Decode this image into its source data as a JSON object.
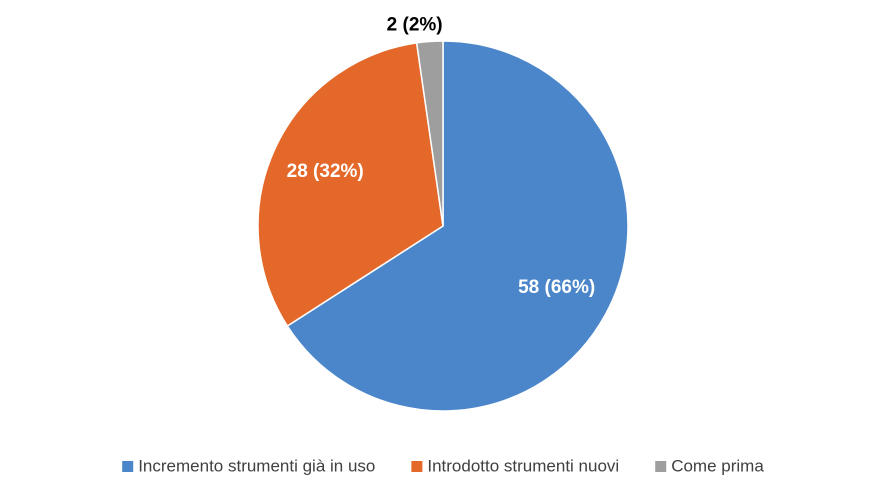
{
  "chart_data": {
    "type": "pie",
    "categories": [
      "Incremento strumenti già in uso",
      "Introdotto strumenti nuovi",
      "Come prima"
    ],
    "values": [
      58,
      28,
      2
    ],
    "value_labels": [
      "58 (66%)",
      "28 (32%)",
      "2 (2%)"
    ],
    "colors": [
      "#4a86c9",
      "#e46829",
      "#9e9e9e"
    ],
    "legend": "bottom"
  }
}
